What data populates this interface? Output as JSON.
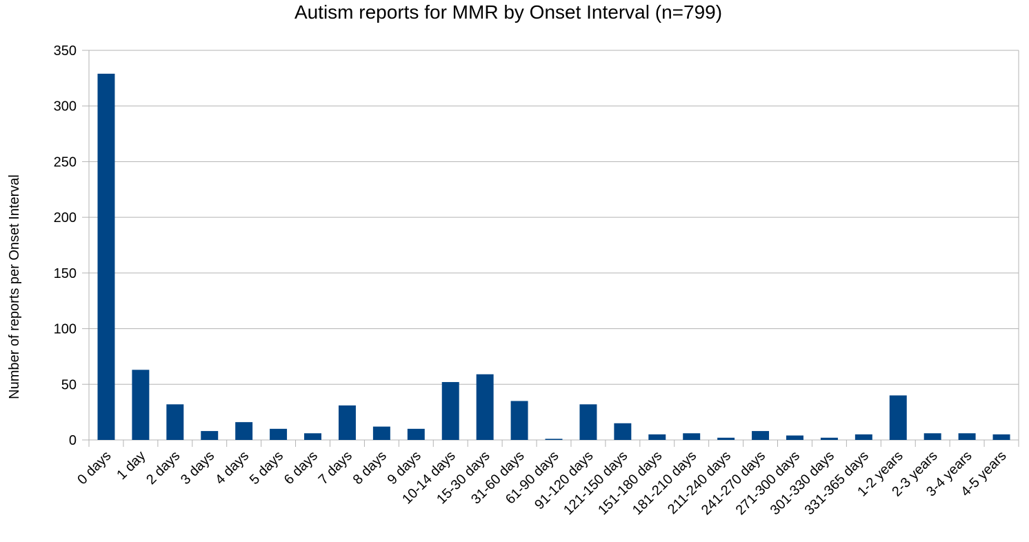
{
  "chart_data": {
    "type": "bar",
    "title": "Autism reports for MMR by Onset Interval (n=799)",
    "xlabel": "",
    "ylabel": "Number of reports per Onset Interval",
    "ylim": [
      0,
      350
    ],
    "yticks": [
      0,
      50,
      100,
      150,
      200,
      250,
      300,
      350
    ],
    "grid": true,
    "legend": "none",
    "bar_color": "#004586",
    "categories": [
      "0 days",
      "1 day",
      "2 days",
      "3 days",
      "4 days",
      "5 days",
      "6 days",
      "7 days",
      "8 days",
      "9 days",
      "10-14 days",
      "15-30 days",
      "31-60 days",
      "61-90 days",
      "91-120 days",
      "121-150 days",
      "151-180 days",
      "181-210 days",
      "211-240 days",
      "241-270 days",
      "271-300 days",
      "301-330 days",
      "331-365 days",
      "1-2 years",
      "2-3 years",
      "3-4 years",
      "4-5 years"
    ],
    "values": [
      329,
      63,
      32,
      8,
      16,
      10,
      6,
      31,
      12,
      10,
      52,
      59,
      35,
      1,
      32,
      15,
      5,
      6,
      2,
      8,
      4,
      2,
      5,
      40,
      6,
      6,
      5
    ]
  }
}
